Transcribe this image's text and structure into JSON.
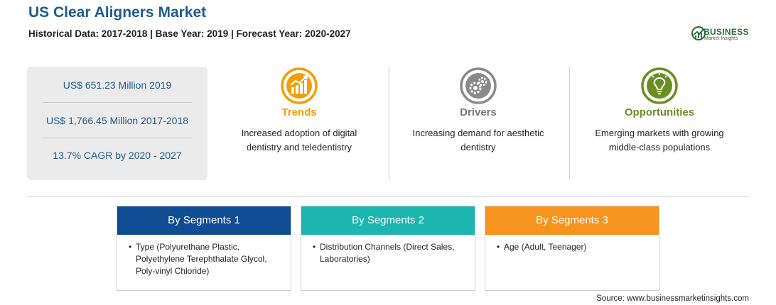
{
  "header": {
    "title": "US Clear Aligners Market",
    "subtitle": "Historical Data: 2017-2018 | Base Year: 2019 | Forecast Year: 2020-2027"
  },
  "logo": {
    "line1": "BUSINESS",
    "line2": "Market Insights",
    "color": "#2a6e3a"
  },
  "stats": [
    "US$ 651.23 Million 2019",
    "US$ 1,766.45 Million 2017-2018",
    "13.7% CAGR by 2020 - 2027"
  ],
  "columns": [
    {
      "icon": "trend-chart-icon",
      "title": "Trends",
      "text": "Increased adoption of digital dentistry and teledentistry",
      "color": "#f29f05"
    },
    {
      "icon": "gears-icon",
      "title": "Drivers",
      "text": "Increasing demand for aesthetic dentistry",
      "color": "#777777"
    },
    {
      "icon": "lightbulb-icon",
      "title": "Opportunities",
      "text": "Emerging markets with growing middle-class populations",
      "color": "#6b8e23"
    }
  ],
  "segments": [
    {
      "title": "By Segments 1",
      "color": "#0f4c92",
      "items": [
        "Type (Polyurethane Plastic, Polyethylene Terephthalate Glycol, Poly-vinyl Chloride)"
      ]
    },
    {
      "title": "By Segments 2",
      "color": "#1cb5b0",
      "items": [
        "Distribution Channels (Direct Sales, Laboratories)"
      ]
    },
    {
      "title": "By Segments 3",
      "color": "#f7941d",
      "items": [
        "Age (Adult, Teenager)"
      ]
    }
  ],
  "source": "Source: www.businessmarketinsights.com"
}
